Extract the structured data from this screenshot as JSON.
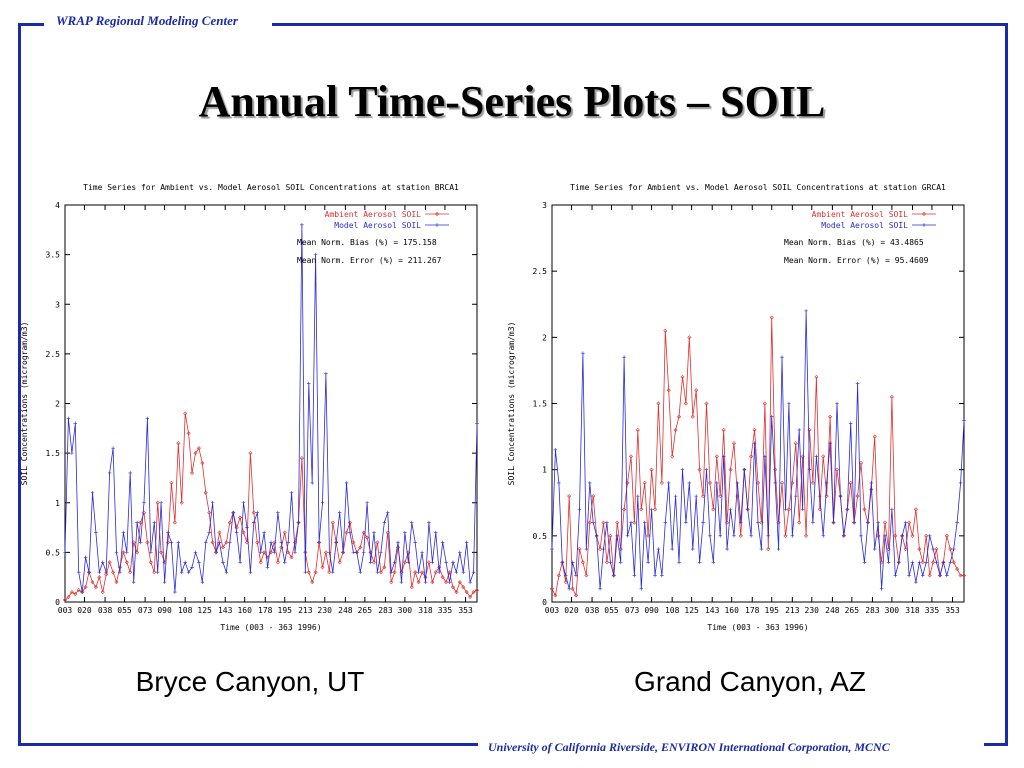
{
  "header": {
    "org": "WRAP Regional Modeling Center"
  },
  "slide": {
    "title": "Annual Time-Series Plots – SOIL"
  },
  "footer": {
    "credits": "University of California Riverside, ENVIRON International Corporation, MCNC"
  },
  "colors": {
    "frame": "#1a2aa8",
    "ambient": "#e03030",
    "model": "#2b2bd8"
  },
  "chart_data": [
    {
      "type": "line",
      "caption": "Bryce Canyon, UT",
      "title": "Time Series for Ambient vs. Model Aerosol SOIL Concentrations at station BRCA1",
      "xlabel": "Time    (003 - 363 1996)",
      "ylabel": "SOIL Concentrations (microgram/m3)",
      "xlim": [
        3,
        363
      ],
      "ylim": [
        0,
        4
      ],
      "x_ticks": [
        "003",
        "020",
        "038",
        "055",
        "073",
        "090",
        "108",
        "125",
        "143",
        "160",
        "178",
        "195",
        "213",
        "230",
        "248",
        "265",
        "283",
        "300",
        "318",
        "335",
        "353"
      ],
      "y_ticks": [
        "0",
        "0.5",
        "1",
        "1.5",
        "2",
        "2.5",
        "3",
        "3.5",
        "4"
      ],
      "stats": [
        "Mean Norm. Bias (%) = 175.158",
        "Mean Norm. Error (%) = 211.267"
      ],
      "legend": "top-right",
      "series": [
        {
          "name": "Ambient Aerosol SOIL",
          "color": "#e03030",
          "x": [
            3,
            6,
            9,
            12,
            15,
            18,
            21,
            24,
            27,
            30,
            33,
            36,
            39,
            42,
            45,
            48,
            51,
            54,
            57,
            60,
            63,
            66,
            69,
            72,
            75,
            78,
            81,
            84,
            87,
            90,
            93,
            96,
            99,
            102,
            105,
            108,
            111,
            114,
            117,
            120,
            123,
            126,
            129,
            132,
            135,
            138,
            141,
            144,
            147,
            150,
            153,
            156,
            159,
            162,
            165,
            168,
            171,
            174,
            177,
            180,
            183,
            186,
            189,
            192,
            195,
            198,
            201,
            204,
            207,
            210,
            213,
            216,
            219,
            222,
            225,
            228,
            231,
            234,
            237,
            240,
            243,
            246,
            249,
            252,
            255,
            258,
            261,
            264,
            267,
            270,
            273,
            276,
            279,
            282,
            285,
            288,
            291,
            294,
            297,
            300,
            303,
            306,
            309,
            312,
            315,
            318,
            321,
            324,
            327,
            330,
            333,
            336,
            339,
            342,
            345,
            348,
            351,
            354,
            357,
            360,
            363
          ],
          "y": [
            0.02,
            0.05,
            0.1,
            0.08,
            0.12,
            0.1,
            0.15,
            0.3,
            0.2,
            0.15,
            0.25,
            0.1,
            0.28,
            0.4,
            0.3,
            0.2,
            0.35,
            0.5,
            0.4,
            0.3,
            0.6,
            0.5,
            0.8,
            0.9,
            0.6,
            0.4,
            0.3,
            1.0,
            0.5,
            0.4,
            0.6,
            1.2,
            0.8,
            1.6,
            1.0,
            1.9,
            1.7,
            1.3,
            1.5,
            1.55,
            1.4,
            1.1,
            0.9,
            0.6,
            0.5,
            0.7,
            0.55,
            0.6,
            0.8,
            0.9,
            0.75,
            0.85,
            0.7,
            0.6,
            1.5,
            0.9,
            0.6,
            0.4,
            0.5,
            0.45,
            0.5,
            0.6,
            0.4,
            0.55,
            0.7,
            0.5,
            0.45,
            0.6,
            0.8,
            1.45,
            0.5,
            0.3,
            0.2,
            0.3,
            0.6,
            0.35,
            0.5,
            0.3,
            0.8,
            0.6,
            0.4,
            0.5,
            0.7,
            0.8,
            0.6,
            0.5,
            0.55,
            0.7,
            0.65,
            0.5,
            0.4,
            0.6,
            0.3,
            0.35,
            0.7,
            0.2,
            0.3,
            0.55,
            0.3,
            0.4,
            0.5,
            0.15,
            0.3,
            0.2,
            0.3,
            0.25,
            0.4,
            0.2,
            0.3,
            0.35,
            0.25,
            0.2,
            0.3,
            0.15,
            0.1,
            0.2,
            0.15,
            0.1,
            0.05,
            0.1,
            0.12
          ]
        },
        {
          "name": "Model Aerosol SOIL",
          "color": "#2b2bd8",
          "x": [
            3,
            6,
            9,
            12,
            15,
            18,
            21,
            24,
            27,
            30,
            33,
            36,
            39,
            42,
            45,
            48,
            51,
            54,
            57,
            60,
            63,
            66,
            69,
            72,
            75,
            78,
            81,
            84,
            87,
            90,
            93,
            96,
            99,
            102,
            105,
            108,
            111,
            114,
            117,
            120,
            123,
            126,
            129,
            132,
            135,
            138,
            141,
            144,
            147,
            150,
            153,
            156,
            159,
            162,
            165,
            168,
            171,
            174,
            177,
            180,
            183,
            186,
            189,
            192,
            195,
            198,
            201,
            204,
            207,
            210,
            213,
            216,
            219,
            222,
            225,
            228,
            231,
            234,
            237,
            240,
            243,
            246,
            249,
            252,
            255,
            258,
            261,
            264,
            267,
            270,
            273,
            276,
            279,
            282,
            285,
            288,
            291,
            294,
            297,
            300,
            303,
            306,
            309,
            312,
            315,
            318,
            321,
            324,
            327,
            330,
            333,
            336,
            339,
            342,
            345,
            348,
            351,
            354,
            357,
            360,
            363
          ],
          "y": [
            0.5,
            1.85,
            1.5,
            1.8,
            0.3,
            0.1,
            0.45,
            0.3,
            1.1,
            0.7,
            0.3,
            0.4,
            0.3,
            1.3,
            1.55,
            0.5,
            0.3,
            0.7,
            0.5,
            1.3,
            0.2,
            0.8,
            0.6,
            1.0,
            1.85,
            0.5,
            0.8,
            0.3,
            1.0,
            0.2,
            0.7,
            0.6,
            0.1,
            0.6,
            0.3,
            0.4,
            0.3,
            0.35,
            0.5,
            0.4,
            0.2,
            0.6,
            0.7,
            1.0,
            0.5,
            0.6,
            0.4,
            0.3,
            0.6,
            0.9,
            0.7,
            0.4,
            1.0,
            0.75,
            0.3,
            0.8,
            0.9,
            0.5,
            0.7,
            0.35,
            0.6,
            0.5,
            0.9,
            0.6,
            0.4,
            0.6,
            1.1,
            0.5,
            0.8,
            3.8,
            0.3,
            2.2,
            1.2,
            3.5,
            0.6,
            1.0,
            2.3,
            0.5,
            0.3,
            0.6,
            0.9,
            0.5,
            1.2,
            0.7,
            0.5,
            0.5,
            0.3,
            0.5,
            1.0,
            0.4,
            0.7,
            0.3,
            0.5,
            0.8,
            0.9,
            0.3,
            0.4,
            0.6,
            0.2,
            0.7,
            0.4,
            0.8,
            0.6,
            0.3,
            0.5,
            0.2,
            0.8,
            0.4,
            0.7,
            0.3,
            0.6,
            0.4,
            0.2,
            0.4,
            0.3,
            0.5,
            0.3,
            0.6,
            0.2,
            0.3,
            1.8
          ]
        }
      ]
    },
    {
      "type": "line",
      "caption": "Grand Canyon, AZ",
      "title": "Time Series for Ambient vs. Model Aerosol SOIL Concentrations at station GRCA1",
      "xlabel": "Time    (003 - 363 1996)",
      "ylabel": "SOIL Concentrations (microgram/m3)",
      "xlim": [
        3,
        363
      ],
      "ylim": [
        0,
        3
      ],
      "x_ticks": [
        "003",
        "020",
        "038",
        "055",
        "073",
        "090",
        "108",
        "125",
        "143",
        "160",
        "178",
        "195",
        "213",
        "230",
        "248",
        "265",
        "283",
        "300",
        "318",
        "335",
        "353"
      ],
      "y_ticks": [
        "0",
        "0.5",
        "1",
        "1.5",
        "2",
        "2.5",
        "3"
      ],
      "stats": [
        "Mean Norm. Bias (%) = 43.4865",
        "Mean Norm. Error (%) = 95.4609"
      ],
      "legend": "top-right",
      "series": [
        {
          "name": "Ambient Aerosol SOIL",
          "color": "#e03030",
          "x": [
            3,
            6,
            9,
            12,
            15,
            18,
            21,
            24,
            27,
            30,
            33,
            36,
            39,
            42,
            45,
            48,
            51,
            54,
            57,
            60,
            63,
            66,
            69,
            72,
            75,
            78,
            81,
            84,
            87,
            90,
            93,
            96,
            99,
            102,
            105,
            108,
            111,
            114,
            117,
            120,
            123,
            126,
            129,
            132,
            135,
            138,
            141,
            144,
            147,
            150,
            153,
            156,
            159,
            162,
            165,
            168,
            171,
            174,
            177,
            180,
            183,
            186,
            189,
            192,
            195,
            198,
            201,
            204,
            207,
            210,
            213,
            216,
            219,
            222,
            225,
            228,
            231,
            234,
            237,
            240,
            243,
            246,
            249,
            252,
            255,
            258,
            261,
            264,
            267,
            270,
            273,
            276,
            279,
            282,
            285,
            288,
            291,
            294,
            297,
            300,
            303,
            306,
            309,
            312,
            315,
            318,
            321,
            324,
            327,
            330,
            333,
            336,
            339,
            342,
            345,
            348,
            351,
            354,
            357,
            360,
            363
          ],
          "y": [
            0.1,
            0.05,
            0.2,
            0.3,
            0.15,
            0.8,
            0.1,
            0.05,
            0.4,
            0.3,
            0.2,
            0.6,
            0.8,
            0.5,
            0.4,
            0.6,
            0.3,
            0.5,
            0.2,
            0.6,
            0.4,
            0.7,
            0.9,
            1.1,
            0.6,
            1.3,
            0.7,
            0.9,
            0.5,
            1.0,
            0.7,
            1.5,
            0.9,
            2.05,
            1.6,
            1.1,
            1.3,
            1.4,
            1.7,
            1.5,
            2.0,
            1.4,
            1.6,
            1.0,
            0.8,
            1.5,
            0.9,
            0.7,
            1.1,
            0.8,
            1.3,
            0.6,
            1.0,
            1.2,
            0.8,
            0.5,
            1.0,
            0.7,
            1.1,
            1.3,
            0.9,
            0.6,
            1.5,
            0.4,
            2.15,
            1.0,
            0.6,
            0.9,
            0.5,
            0.7,
            0.9,
            1.2,
            0.6,
            1.1,
            0.5,
            1.3,
            0.9,
            1.7,
            0.7,
            1.1,
            0.8,
            1.4,
            0.6,
            1.0,
            0.8,
            0.5,
            0.7,
            0.9,
            0.6,
            0.8,
            1.05,
            0.7,
            0.6,
            0.85,
            1.25,
            0.5,
            0.3,
            0.6,
            0.4,
            1.55,
            0.5,
            0.3,
            0.5,
            0.4,
            0.6,
            0.5,
            0.7,
            0.4,
            0.3,
            0.5,
            0.2,
            0.3,
            0.4,
            0.2,
            0.3,
            0.5,
            0.4,
            0.3,
            0.25,
            0.2,
            0.2
          ]
        },
        {
          "name": "Model Aerosol SOIL",
          "color": "#2b2bd8",
          "x": [
            3,
            6,
            9,
            12,
            15,
            18,
            21,
            24,
            27,
            30,
            33,
            36,
            39,
            42,
            45,
            48,
            51,
            54,
            57,
            60,
            63,
            66,
            69,
            72,
            75,
            78,
            81,
            84,
            87,
            90,
            93,
            96,
            99,
            102,
            105,
            108,
            111,
            114,
            117,
            120,
            123,
            126,
            129,
            132,
            135,
            138,
            141,
            144,
            147,
            150,
            153,
            156,
            159,
            162,
            165,
            168,
            171,
            174,
            177,
            180,
            183,
            186,
            189,
            192,
            195,
            198,
            201,
            204,
            207,
            210,
            213,
            216,
            219,
            222,
            225,
            228,
            231,
            234,
            237,
            240,
            243,
            246,
            249,
            252,
            255,
            258,
            261,
            264,
            267,
            270,
            273,
            276,
            279,
            282,
            285,
            288,
            291,
            294,
            297,
            300,
            303,
            306,
            309,
            312,
            315,
            318,
            321,
            324,
            327,
            330,
            333,
            336,
            339,
            342,
            345,
            348,
            351,
            354,
            357,
            360,
            363
          ],
          "y": [
            0.4,
            1.15,
            0.9,
            0.3,
            0.2,
            0.1,
            0.3,
            0.2,
            0.7,
            1.88,
            0.4,
            0.9,
            0.6,
            0.5,
            0.1,
            0.4,
            0.6,
            0.3,
            0.2,
            0.5,
            0.3,
            1.85,
            0.5,
            0.6,
            0.2,
            0.8,
            0.1,
            0.6,
            0.3,
            0.7,
            0.2,
            0.4,
            0.2,
            0.6,
            0.9,
            0.4,
            0.8,
            0.3,
            1.0,
            0.6,
            0.9,
            0.4,
            0.8,
            0.3,
            0.6,
            1.0,
            0.5,
            0.3,
            0.9,
            0.5,
            1.1,
            0.4,
            0.7,
            0.5,
            0.9,
            0.6,
            1.0,
            0.7,
            0.5,
            1.2,
            0.6,
            0.4,
            1.1,
            0.5,
            1.4,
            0.9,
            0.4,
            1.85,
            0.7,
            1.5,
            0.5,
            0.8,
            1.3,
            0.7,
            2.2,
            1.0,
            0.6,
            1.1,
            0.8,
            0.5,
            0.9,
            1.2,
            0.6,
            1.5,
            0.8,
            0.5,
            0.7,
            1.35,
            0.6,
            1.65,
            0.5,
            0.3,
            0.6,
            0.9,
            0.4,
            0.6,
            0.1,
            0.5,
            0.3,
            0.7,
            0.2,
            0.3,
            0.5,
            0.6,
            0.2,
            0.3,
            0.15,
            0.3,
            0.2,
            0.3,
            0.5,
            0.4,
            0.3,
            0.2,
            0.3,
            0.2,
            0.3,
            0.4,
            0.6,
            0.9,
            1.37
          ]
        }
      ]
    }
  ]
}
